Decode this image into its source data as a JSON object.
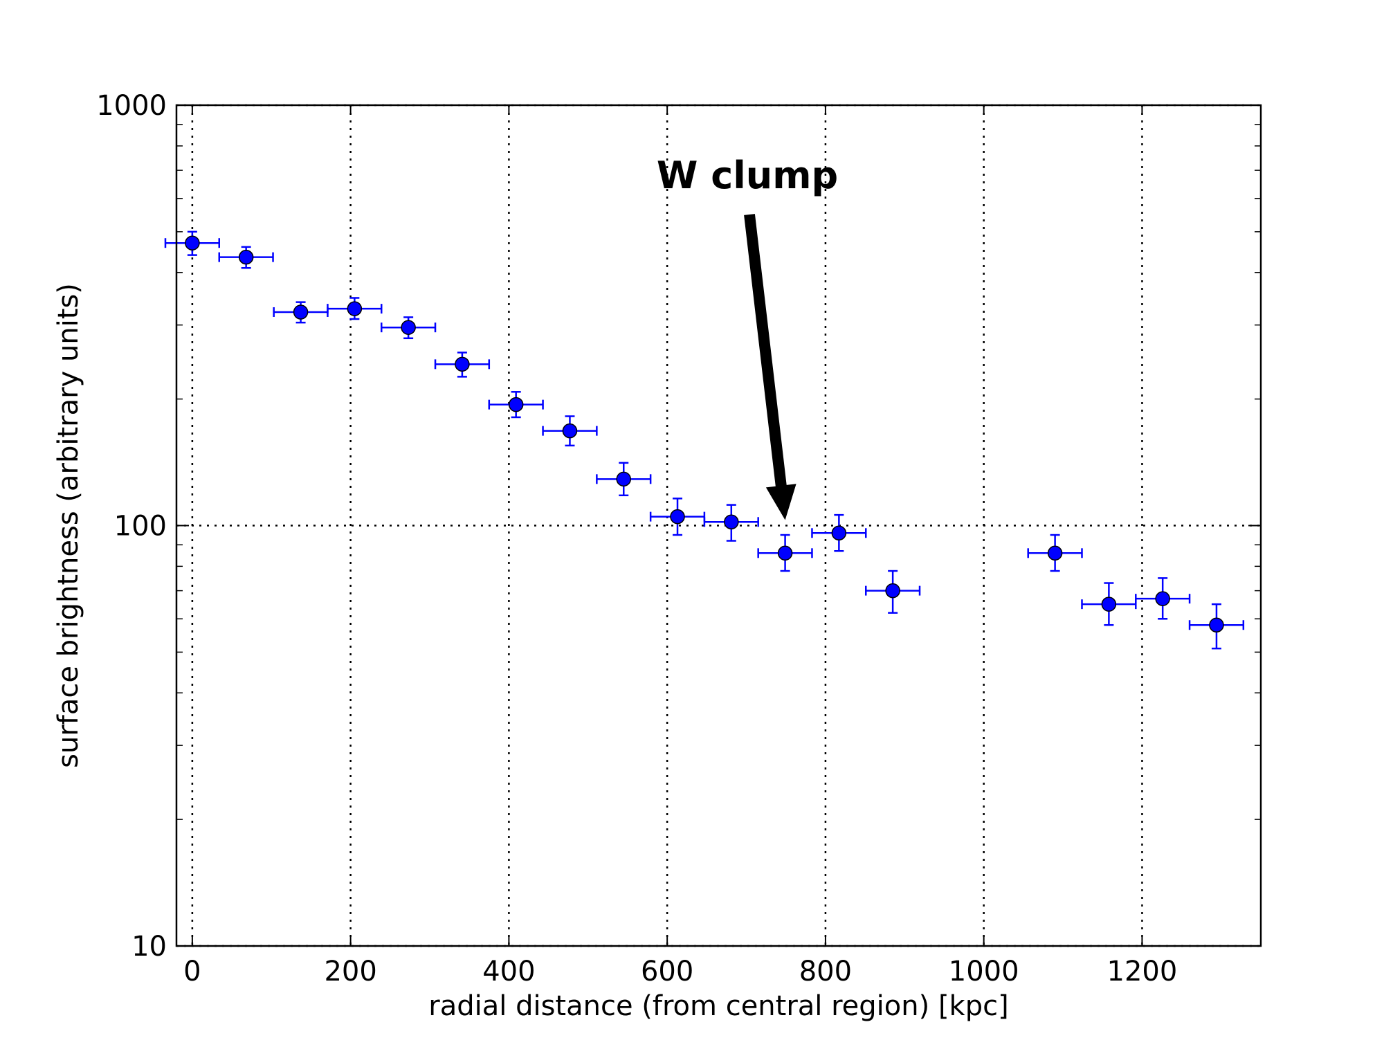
{
  "chart_data": {
    "type": "scatter",
    "xlabel": "radial distance (from central region) [kpc]",
    "ylabel": "surface brightness (arbitrary units)",
    "xlim": [
      -20,
      1350
    ],
    "ylim": [
      10,
      1000
    ],
    "yscale": "log",
    "grid": true,
    "xticks": [
      0,
      200,
      400,
      600,
      800,
      1000,
      1200
    ],
    "xtick_labels": [
      "0",
      "200",
      "400",
      "600",
      "800",
      "1000",
      "1200"
    ],
    "yticks": [
      10,
      100,
      1000
    ],
    "ytick_labels": [
      "10",
      "100",
      "1000"
    ],
    "marker_color": "#0000ff",
    "points": [
      {
        "x": 0,
        "y": 470,
        "xerr": 34,
        "yerr_lo": 30,
        "yerr_hi": 30
      },
      {
        "x": 68,
        "y": 435,
        "xerr": 34,
        "yerr_lo": 25,
        "yerr_hi": 25
      },
      {
        "x": 137,
        "y": 322,
        "xerr": 34,
        "yerr_lo": 18,
        "yerr_hi": 18
      },
      {
        "x": 205,
        "y": 328,
        "xerr": 34,
        "yerr_lo": 18,
        "yerr_hi": 20
      },
      {
        "x": 273,
        "y": 296,
        "xerr": 34,
        "yerr_lo": 17,
        "yerr_hi": 17
      },
      {
        "x": 341,
        "y": 242,
        "xerr": 34,
        "yerr_lo": 16,
        "yerr_hi": 16
      },
      {
        "x": 409,
        "y": 194,
        "xerr": 34,
        "yerr_lo": 13,
        "yerr_hi": 14
      },
      {
        "x": 477,
        "y": 168,
        "xerr": 34,
        "yerr_lo": 13,
        "yerr_hi": 14
      },
      {
        "x": 545,
        "y": 129,
        "xerr": 34,
        "yerr_lo": 11,
        "yerr_hi": 12
      },
      {
        "x": 613,
        "y": 105,
        "xerr": 34,
        "yerr_lo": 10,
        "yerr_hi": 11
      },
      {
        "x": 681,
        "y": 102,
        "xerr": 34,
        "yerr_lo": 10,
        "yerr_hi": 10
      },
      {
        "x": 749,
        "y": 86,
        "xerr": 34,
        "yerr_lo": 8,
        "yerr_hi": 9
      },
      {
        "x": 817,
        "y": 96,
        "xerr": 34,
        "yerr_lo": 9,
        "yerr_hi": 10
      },
      {
        "x": 885,
        "y": 70,
        "xerr": 34,
        "yerr_lo": 8,
        "yerr_hi": 8
      },
      {
        "x": 1090,
        "y": 86,
        "xerr": 34,
        "yerr_lo": 8,
        "yerr_hi": 9
      },
      {
        "x": 1158,
        "y": 65,
        "xerr": 34,
        "yerr_lo": 7,
        "yerr_hi": 8
      },
      {
        "x": 1226,
        "y": 67,
        "xerr": 34,
        "yerr_lo": 7,
        "yerr_hi": 8
      },
      {
        "x": 1294,
        "y": 58,
        "xerr": 34,
        "yerr_lo": 7,
        "yerr_hi": 7
      }
    ],
    "annotations": [
      {
        "text": "W clump",
        "target_x": 749,
        "target_y": 100
      }
    ]
  }
}
